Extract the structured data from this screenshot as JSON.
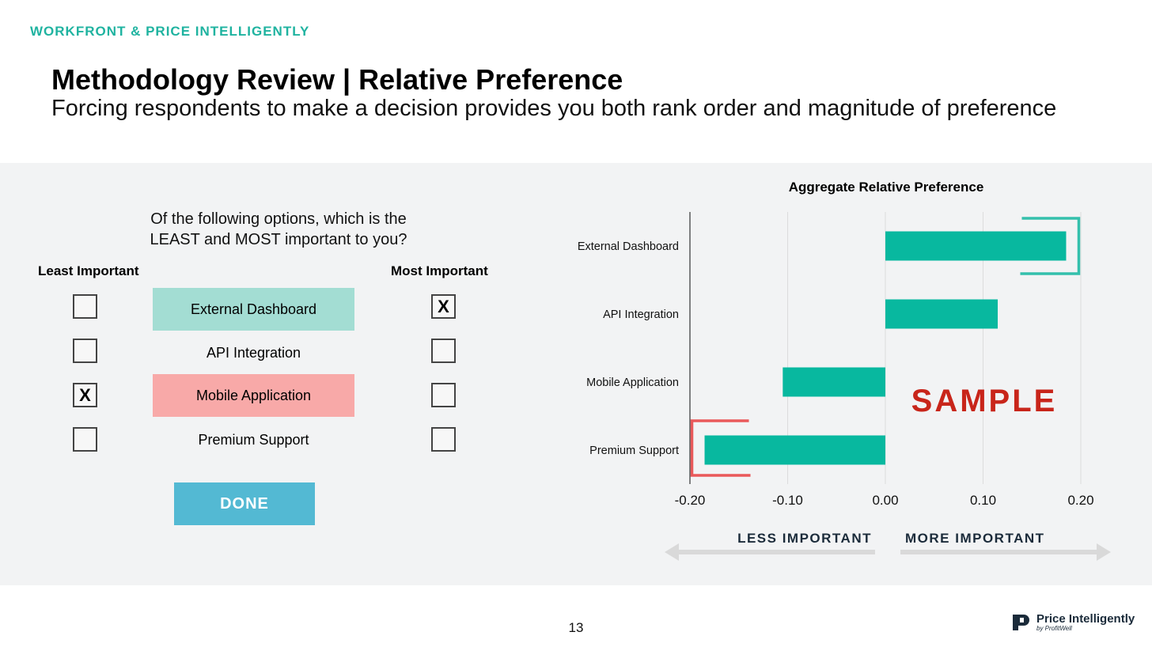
{
  "header": {
    "eyebrow": "WORKFRONT & PRICE INTELLIGENTLY",
    "title": "Methodology Review | Relative Preference",
    "subtitle": "Forcing respondents to make a decision provides you both rank order and magnitude of preference"
  },
  "survey": {
    "question_line1": "Of the following options, which is the",
    "question_line2": "LEAST and MOST important to you?",
    "least_label": "Least Important",
    "most_label": "Most Important",
    "options": [
      {
        "label": "External Dashboard",
        "least": "",
        "most": "X",
        "highlight": "#a3ddd3"
      },
      {
        "label": "API Integration",
        "least": "",
        "most": "",
        "highlight": ""
      },
      {
        "label": "Mobile Application",
        "least": "X",
        "most": "",
        "highlight": "#f8a9a8"
      },
      {
        "label": "Premium Support",
        "least": "",
        "most": "",
        "highlight": ""
      }
    ],
    "done_label": "DONE"
  },
  "chart_data": {
    "type": "bar",
    "orientation": "horizontal",
    "title": "Aggregate Relative Preference",
    "categories": [
      "External Dashboard",
      "API Integration",
      "Mobile Application",
      "Premium Support"
    ],
    "values": [
      0.185,
      0.115,
      -0.105,
      -0.185
    ],
    "xlim": [
      -0.2,
      0.2
    ],
    "xticks": [
      "-0.20",
      "-0.10",
      "0.00",
      "0.10",
      "0.20"
    ],
    "grid": true,
    "bar_color": "#08b89f",
    "watermark": "SAMPLE",
    "watermark_color": "#c8251a",
    "highlight_top_color": "#34c0ac",
    "highlight_bottom_color": "#e9595a",
    "less_label": "LESS IMPORTANT",
    "more_label": "MORE IMPORTANT"
  },
  "footer": {
    "page_number": "13",
    "logo_name": "Price Intelligently",
    "logo_sub": "by ProfitWell"
  }
}
